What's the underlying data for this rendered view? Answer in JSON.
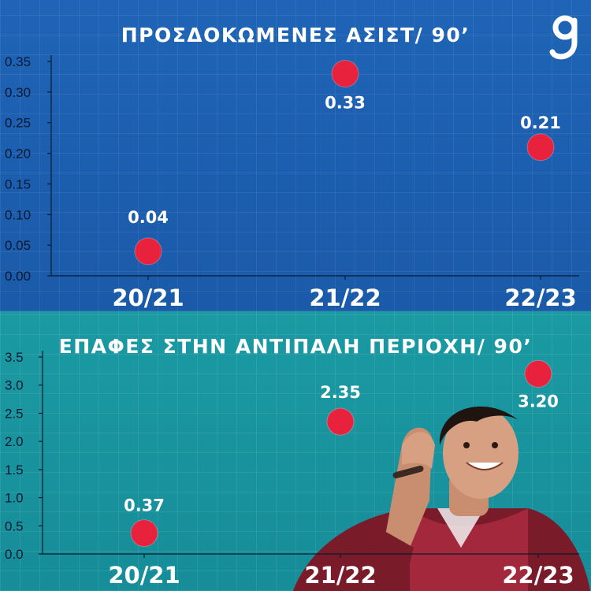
{
  "chart_data": [
    {
      "type": "scatter",
      "title": "ΠΡΟΣΔΟΚΩΜΕΝΕΣ ΑΣΙΣΤ/ 90’",
      "categories": [
        "20/21",
        "21/22",
        "22/23"
      ],
      "values": [
        0.04,
        0.33,
        0.21
      ],
      "data_labels": [
        "0.04",
        "0.33",
        "0.21"
      ],
      "yticks": [
        "0.00",
        "0.05",
        "0.10",
        "0.15",
        "0.20",
        "0.25",
        "0.30",
        "0.35"
      ],
      "ylim": [
        0,
        0.35
      ],
      "xlabel": "",
      "ylabel": "",
      "grid": true,
      "marker_color": "#e8223c",
      "background": "#1f64b6"
    },
    {
      "type": "scatter",
      "title": "ΕΠΑΦΕΣ ΣΤΗΝ ΑΝΤΙΠΑΛΗ ΠΕΡΙΟΧΗ/ 90’",
      "categories": [
        "20/21",
        "21/22",
        "22/23"
      ],
      "values": [
        0.37,
        2.35,
        3.2
      ],
      "data_labels": [
        "0.37",
        "2.35",
        "3.20"
      ],
      "yticks": [
        "0.0",
        "0.5",
        "1.0",
        "1.5",
        "2.0",
        "2.5",
        "3.0",
        "3.5"
      ],
      "ylim": [
        0,
        3.5
      ],
      "xlabel": "",
      "ylabel": "",
      "grid": true,
      "marker_color": "#e8223c",
      "background": "#1b9aa3"
    }
  ]
}
